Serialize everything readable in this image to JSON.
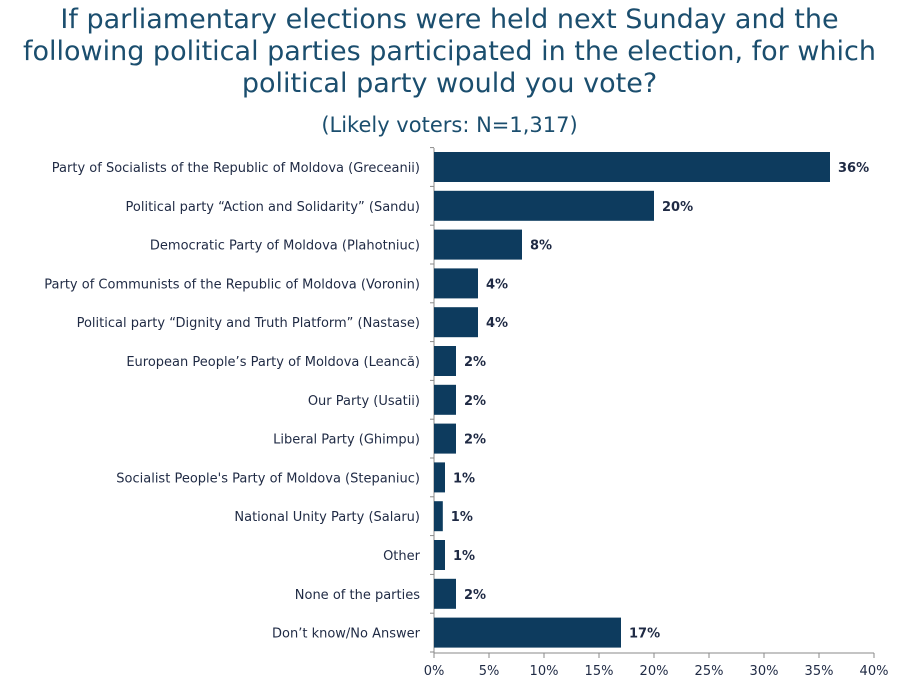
{
  "chart_data": {
    "type": "bar",
    "orientation": "horizontal",
    "title": "If parliamentary elections were held next Sunday and the following political parties participated in the election, for which political party would you vote?",
    "subtitle": "(Likely voters: N=1,317)",
    "categories": [
      "Party of Socialists of the Republic of Moldova (Greceanii)",
      "Political party “Action and Solidarity” (Sandu)",
      "Democratic Party of Moldova (Plahotniuc)",
      "Party of Communists of the Republic of Moldova (Voronin)",
      "Political party “Dignity and Truth Platform” (Nastase)",
      "European People’s Party of Moldova (Leancă)",
      "Our Party (Usatii)",
      "Liberal Party (Ghimpu)",
      "Socialist People's Party of Moldova (Stepaniuc)",
      "National Unity Party (Salaru)",
      "Other",
      "None of the parties",
      "Don’t know/No Answer"
    ],
    "values": [
      36,
      20,
      8,
      4,
      4,
      2,
      2,
      2,
      1,
      0.8,
      1,
      2,
      17
    ],
    "value_labels": [
      "36%",
      "20%",
      "8%",
      "4%",
      "4%",
      "2%",
      "2%",
      "2%",
      "1%",
      "1%",
      "1%",
      "2%",
      "17%"
    ],
    "xlim": [
      0,
      40
    ],
    "xticks": [
      0,
      5,
      10,
      15,
      20,
      25,
      30,
      35,
      40
    ],
    "xtick_labels": [
      "0%",
      "5%",
      "10%",
      "15%",
      "20%",
      "25%",
      "30%",
      "35%",
      "40%"
    ],
    "xlabel": "",
    "ylabel": "",
    "grid": false,
    "bar_color": "#0d3b5e",
    "title_color": "#1b4e6e",
    "text_color": "#1f2a44"
  }
}
